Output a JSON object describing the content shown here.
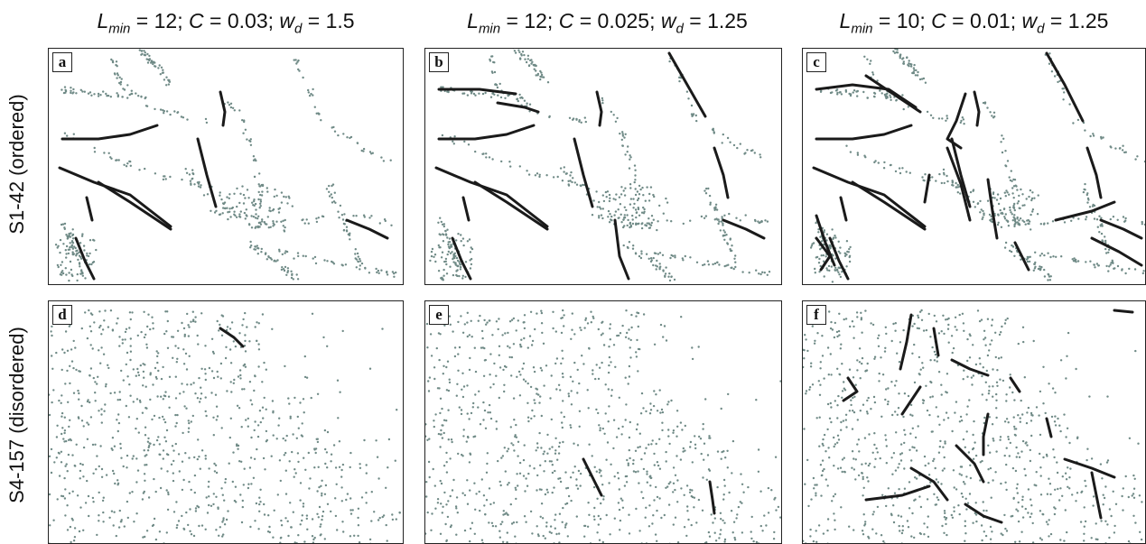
{
  "columns": [
    {
      "lmin": "12",
      "c": "0.03",
      "wd": "1.5"
    },
    {
      "lmin": "12",
      "c": "0.025",
      "wd": "1.25"
    },
    {
      "lmin": "10",
      "c": "0.01",
      "wd": "1.25"
    }
  ],
  "symbols": {
    "l": "L",
    "l_sub": "min",
    "c": "C",
    "w": "w",
    "w_sub": "d",
    "eq": " = ",
    "sep": "; "
  },
  "rows": [
    {
      "label": "S1-42 (ordered)"
    },
    {
      "label": "S4-157 (disordered)"
    }
  ],
  "panels": [
    "a",
    "b",
    "c",
    "d",
    "e",
    "f"
  ],
  "colors": {
    "dots": "#6f8a86",
    "lines": "#1a1a1a",
    "frame": "#222222"
  }
}
